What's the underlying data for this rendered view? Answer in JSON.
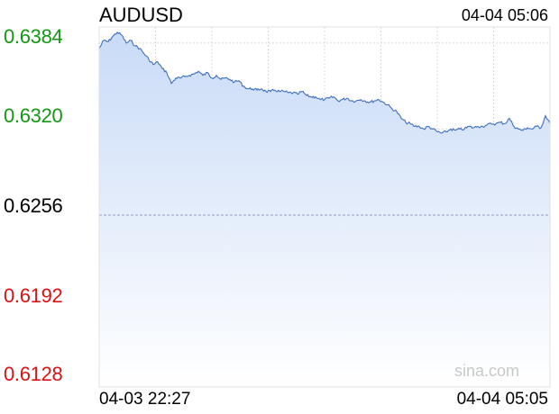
{
  "chart_data": {
    "type": "area",
    "title": "AUDUSD",
    "timestamp": "04-04 05:06",
    "ylim": [
      0.6128,
      0.6396
    ],
    "grid": true,
    "y_ticks": [
      {
        "label": "0.6384",
        "value": 0.6384,
        "color": "#119911"
      },
      {
        "label": "0.6320",
        "value": 0.632,
        "color": "#119911"
      },
      {
        "label": "0.6256",
        "value": 0.6256,
        "color": "#000000"
      },
      {
        "label": "0.6192",
        "value": 0.6192,
        "color": "#dd1111"
      },
      {
        "label": "0.6128",
        "value": 0.6128,
        "color": "#dd1111"
      }
    ],
    "reference_value": 0.6256,
    "x_ticks": [
      "04-03 22:27",
      "04-04 05:05"
    ],
    "x_range": [
      "04-03 22:27",
      "04-04 05:06"
    ],
    "series": [
      {
        "x": [
          "22:27",
          "22:31",
          "22:35",
          "22:39",
          "22:43",
          "22:47",
          "22:51",
          "22:55",
          "22:59",
          "23:03",
          "23:07",
          "23:11",
          "23:15",
          "23:19",
          "23:23",
          "23:27",
          "23:31",
          "23:35",
          "23:39",
          "23:43",
          "23:47",
          "23:51",
          "23:55",
          "23:59",
          "00:03",
          "00:07",
          "00:11",
          "00:15",
          "00:19",
          "00:23",
          "00:27",
          "00:31",
          "00:35",
          "00:39",
          "00:43",
          "00:47",
          "00:51",
          "00:55",
          "00:59",
          "01:03",
          "01:07",
          "01:11",
          "01:15",
          "01:19",
          "01:23",
          "01:27",
          "01:31",
          "01:35",
          "01:39",
          "01:43",
          "01:47",
          "01:51",
          "01:55",
          "01:59",
          "02:03",
          "02:07",
          "02:11",
          "02:15",
          "02:19",
          "02:23",
          "02:27",
          "02:31",
          "02:35",
          "02:39",
          "02:43",
          "02:47",
          "02:51",
          "02:55",
          "02:59",
          "03:03",
          "03:07",
          "03:11",
          "03:15",
          "03:19",
          "03:23",
          "03:27",
          "03:31",
          "03:35",
          "03:39",
          "03:43",
          "03:47",
          "03:51",
          "03:55",
          "03:59",
          "04:03",
          "04:07",
          "04:11",
          "04:15",
          "04:19",
          "04:23",
          "04:27",
          "04:31",
          "04:35",
          "04:39",
          "04:43",
          "04:47",
          "04:51",
          "04:55",
          "04:59",
          "05:03",
          "05:06"
        ],
        "values": [
          0.638,
          0.6386,
          0.6385,
          0.6389,
          0.6392,
          0.639,
          0.6384,
          0.6386,
          0.6382,
          0.638,
          0.6376,
          0.6372,
          0.6368,
          0.637,
          0.6365,
          0.6362,
          0.6354,
          0.6358,
          0.6358,
          0.6359,
          0.636,
          0.6361,
          0.6363,
          0.636,
          0.6362,
          0.6358,
          0.636,
          0.6357,
          0.6358,
          0.6357,
          0.6355,
          0.6356,
          0.6352,
          0.635,
          0.635,
          0.6349,
          0.635,
          0.6348,
          0.6348,
          0.6349,
          0.6348,
          0.6348,
          0.6347,
          0.6347,
          0.6346,
          0.6348,
          0.6345,
          0.6344,
          0.6344,
          0.6342,
          0.6342,
          0.6343,
          0.6344,
          0.6341,
          0.6342,
          0.6343,
          0.6341,
          0.6341,
          0.6342,
          0.6341,
          0.634,
          0.6341,
          0.6342,
          0.634,
          0.6338,
          0.6335,
          0.6333,
          0.6328,
          0.6325,
          0.6324,
          0.6322,
          0.6322,
          0.632,
          0.6322,
          0.632,
          0.6318,
          0.6317,
          0.6318,
          0.632,
          0.6319,
          0.632,
          0.632,
          0.6322,
          0.6321,
          0.6322,
          0.6322,
          0.6323,
          0.6324,
          0.6324,
          0.6325,
          0.6324,
          0.6328,
          0.6322,
          0.632,
          0.6319,
          0.6321,
          0.632,
          0.6322,
          0.6321,
          0.633,
          0.6324
        ]
      }
    ],
    "watermark": "sina.com",
    "colors": {
      "line": "#3f6fc2",
      "fill_top": "#c9dbf7",
      "fill_bottom": "#ffffff",
      "grid": "#d8d8d8",
      "reference_line": "#9a9ac8"
    }
  }
}
